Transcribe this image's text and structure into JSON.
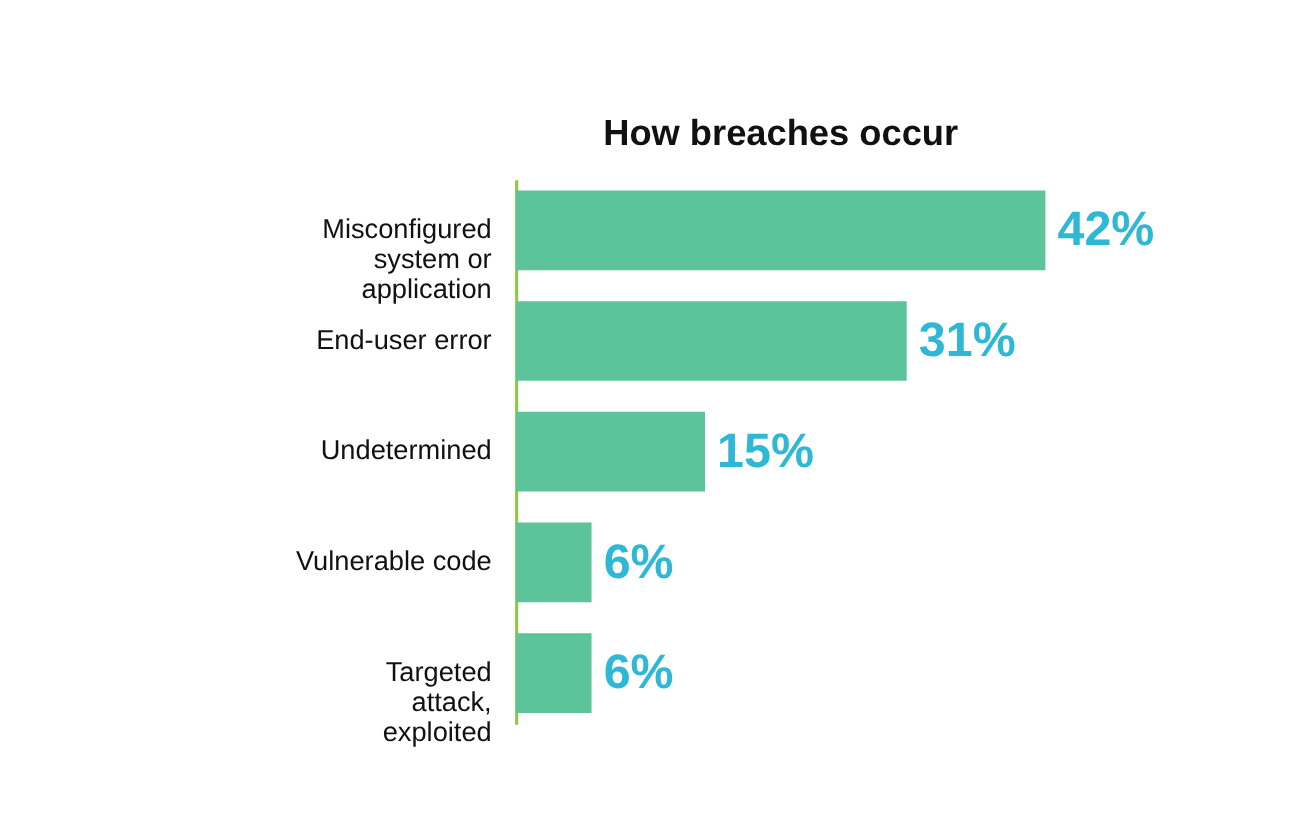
{
  "chart_data": {
    "type": "bar",
    "title": "How breaches occur",
    "categories": [
      "Misconfigured system or application",
      "End-user error",
      "Undetermined",
      "Vulnerable code",
      "Targeted attack, exploited"
    ],
    "values": [
      42,
      31,
      15,
      6,
      6
    ],
    "value_labels": [
      "42%",
      "31%",
      "15%",
      "6%",
      "6%"
    ],
    "color": "#5cc39a",
    "orientation": "horizontal"
  }
}
